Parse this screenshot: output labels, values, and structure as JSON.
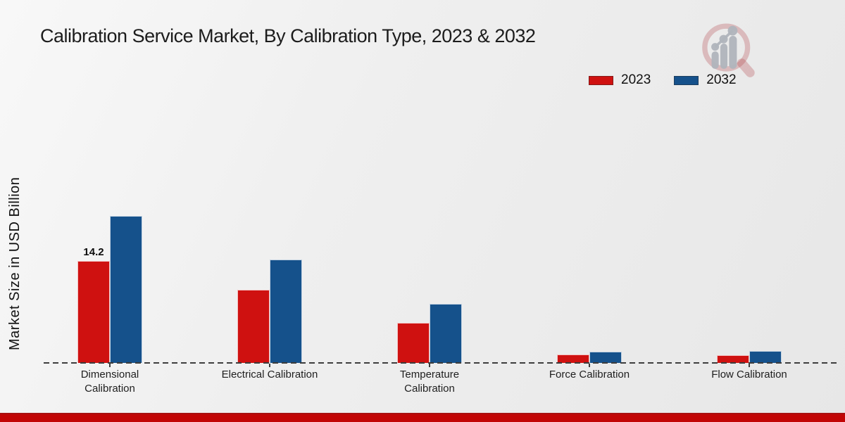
{
  "page": {
    "title": "Calibration Service Market, By Calibration Type, 2023 & 2032"
  },
  "chart_data": {
    "type": "bar",
    "title": "Calibration Service Market, By Calibration Type, 2023 & 2032",
    "xlabel": "",
    "ylabel": "Market Size in USD Billion",
    "unit": "USD Billion",
    "categories": [
      "Dimensional Calibration",
      "Electrical Calibration",
      "Temperature Calibration",
      "Force Calibration",
      "Flow Calibration"
    ],
    "series": [
      {
        "name": "2023",
        "color": "#cf1110",
        "values": [
          14.2,
          10.2,
          5.6,
          1.2,
          1.1
        ]
      },
      {
        "name": "2032",
        "color": "#15518b",
        "values": [
          20.5,
          14.4,
          8.2,
          1.6,
          1.7
        ]
      }
    ],
    "annotations": [
      {
        "category_index": 0,
        "series_index": 0,
        "text": "14.2"
      }
    ],
    "axis_style": "dashed-baseline-only",
    "grid": false,
    "legend_position": "top-right",
    "ylim": [
      0,
      22
    ]
  },
  "branding": {
    "logo_icon": "magnifier-bar-chart-logo",
    "footer_color": "#c20505"
  },
  "colors": {
    "series_2023": "#cf1110",
    "series_2032": "#15518b",
    "baseline": "#3d3d3d",
    "background": "#ededed"
  }
}
